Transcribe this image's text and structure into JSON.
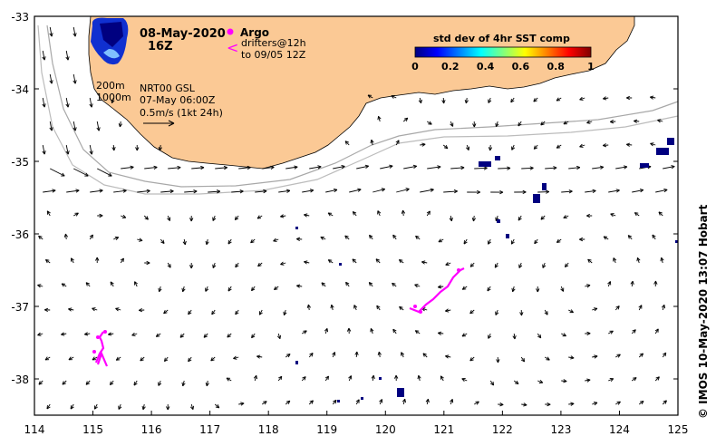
{
  "map": {
    "date": "08-May-2020",
    "hour": "16Z",
    "argo_label": "Argo",
    "drifters_line1": "drifters@12h",
    "drifters_line2": "to 09/05 12Z",
    "contour_200": "200m",
    "contour_1000": "1000m",
    "product": "NRT00 GSL",
    "product_time": "07-May 06:00Z",
    "scale_text": "0.5m/s (1kt 24h)",
    "colorbar": {
      "title": "std dev of 4hr SST comp",
      "ticks": [
        "0",
        "0.2",
        "0.4",
        "0.6",
        "0.8",
        "1"
      ],
      "colors": [
        "#00007f",
        "#0000ff",
        "#007fff",
        "#00ffff",
        "#7fff7f",
        "#ffff00",
        "#ff7f00",
        "#ff0000",
        "#7f0000"
      ]
    },
    "credit": "© IMOS 10-May-2020 13:07 Hobart",
    "lon_ticks": [
      "114",
      "115",
      "116",
      "117",
      "118",
      "119",
      "120",
      "121",
      "122",
      "123",
      "124",
      "125"
    ],
    "lat_ticks": [
      "-33",
      "-34",
      "-35",
      "-36",
      "-37",
      "-38"
    ],
    "lon_range": [
      114,
      125
    ],
    "lat_range": [
      -38.5,
      -33
    ],
    "land_color": "#fbc995",
    "drifter_color": "#ff00ff",
    "sst_color": "#000080"
  }
}
